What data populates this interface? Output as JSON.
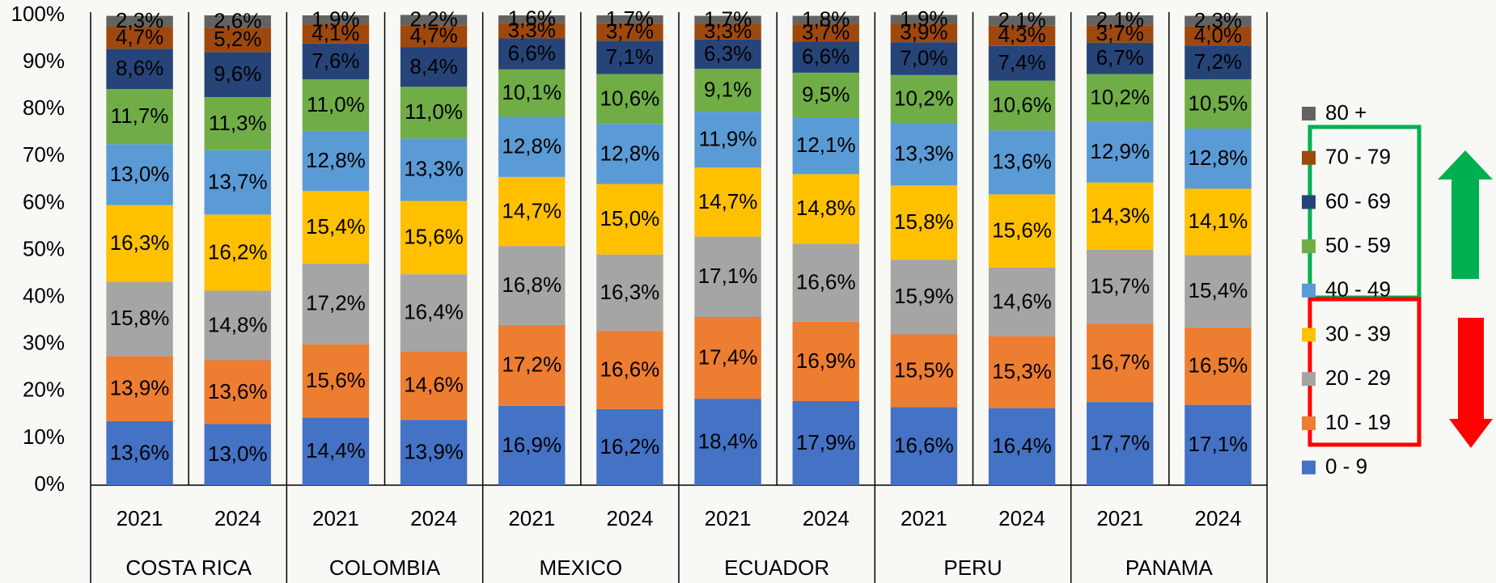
{
  "chart_data": {
    "type": "stacked_bar",
    "categories": [
      "2021",
      "2024",
      "2021",
      "2024",
      "2021",
      "2024",
      "2021",
      "2024",
      "2021",
      "2024",
      "2021",
      "2024"
    ],
    "groups": [
      "COSTA RICA",
      "COLOMBIA",
      "MEXICO",
      "ECUADOR",
      "PERU",
      "PANAMA"
    ],
    "ylim": [
      0,
      100
    ],
    "yticks": [
      {
        "value": 0,
        "label": "0%"
      },
      {
        "value": 10,
        "label": "10%"
      },
      {
        "value": 20,
        "label": "20%"
      },
      {
        "value": 30,
        "label": "30%"
      },
      {
        "value": 40,
        "label": "40%"
      },
      {
        "value": 50,
        "label": "50%"
      },
      {
        "value": 60,
        "label": "60%"
      },
      {
        "value": 70,
        "label": "70%"
      },
      {
        "value": 80,
        "label": "80%"
      },
      {
        "value": 90,
        "label": "90%"
      },
      {
        "value": 100,
        "label": "100%"
      }
    ],
    "legend": "right",
    "series": [
      {
        "name": "0 - 9",
        "color": "#4472c4",
        "values": [
          13.6,
          13.0,
          14.4,
          13.9,
          16.9,
          16.2,
          18.4,
          17.9,
          16.6,
          16.4,
          17.7,
          17.1
        ],
        "value_labels": [
          "13,6%",
          "13,0%",
          "14,4%",
          "13,9%",
          "16,9%",
          "16,2%",
          "18,4%",
          "17,9%",
          "16,6%",
          "16,4%",
          "17,7%",
          "17,1%"
        ]
      },
      {
        "name": "10 - 19",
        "color": "#ed7d31",
        "values": [
          13.9,
          13.6,
          15.6,
          14.6,
          17.2,
          16.6,
          17.4,
          16.9,
          15.5,
          15.3,
          16.7,
          16.5
        ],
        "value_labels": [
          "13,9%",
          "13,6%",
          "15,6%",
          "14,6%",
          "17,2%",
          "16,6%",
          "17,4%",
          "16,9%",
          "15,5%",
          "15,3%",
          "16,7%",
          "16,5%"
        ]
      },
      {
        "name": "20 - 29",
        "color": "#a5a5a5",
        "values": [
          15.8,
          14.8,
          17.2,
          16.4,
          16.8,
          16.3,
          17.1,
          16.6,
          15.9,
          14.6,
          15.7,
          15.4
        ],
        "value_labels": [
          "15,8%",
          "14,8%",
          "17,2%",
          "16,4%",
          "16,8%",
          "16,3%",
          "17,1%",
          "16,6%",
          "15,9%",
          "14,6%",
          "15,7%",
          "15,4%"
        ]
      },
      {
        "name": "30 - 39",
        "color": "#ffc000",
        "values": [
          16.3,
          16.2,
          15.4,
          15.6,
          14.7,
          15.0,
          14.7,
          14.8,
          15.8,
          15.6,
          14.3,
          14.1
        ],
        "value_labels": [
          "16,3%",
          "16,2%",
          "15,4%",
          "15,6%",
          "14,7%",
          "15,0%",
          "14,7%",
          "14,8%",
          "15,8%",
          "15,6%",
          "14,3%",
          "14,1%"
        ]
      },
      {
        "name": "40 - 49",
        "color": "#5b9bd5",
        "values": [
          13.0,
          13.7,
          12.8,
          13.3,
          12.8,
          12.8,
          11.9,
          12.1,
          13.3,
          13.6,
          12.9,
          12.8
        ],
        "value_labels": [
          "13,0%",
          "13,7%",
          "12,8%",
          "13,3%",
          "12,8%",
          "12,8%",
          "11,9%",
          "12,1%",
          "13,3%",
          "13,6%",
          "12,9%",
          "12,8%"
        ]
      },
      {
        "name": "50 - 59",
        "color": "#70ad47",
        "values": [
          11.7,
          11.3,
          11.0,
          11.0,
          10.1,
          10.6,
          9.1,
          9.5,
          10.2,
          10.6,
          10.2,
          10.5
        ],
        "value_labels": [
          "11,7%",
          "11,3%",
          "11,0%",
          "11,0%",
          "10,1%",
          "10,6%",
          "9,1%",
          "9,5%",
          "10,2%",
          "10,6%",
          "10,2%",
          "10,5%"
        ]
      },
      {
        "name": "60 - 69",
        "color": "#264478",
        "values": [
          8.6,
          9.6,
          7.6,
          8.4,
          6.6,
          7.1,
          6.3,
          6.6,
          7.0,
          7.4,
          6.7,
          7.2
        ],
        "value_labels": [
          "8,6%",
          "9,6%",
          "7,6%",
          "8,4%",
          "6,6%",
          "7,1%",
          "6,3%",
          "6,6%",
          "7,0%",
          "7,4%",
          "6,7%",
          "7,2%"
        ]
      },
      {
        "name": "70 - 79",
        "color": "#9e480e",
        "values": [
          4.7,
          5.2,
          4.1,
          4.7,
          3.3,
          3.7,
          3.3,
          3.7,
          3.9,
          4.3,
          3.7,
          4.0
        ],
        "value_labels": [
          "4,7%",
          "5,2%",
          "4,1%",
          "4,7%",
          "3,3%",
          "3,7%",
          "3,3%",
          "3,7%",
          "3,9%",
          "4,3%",
          "3,7%",
          "4,0%"
        ]
      },
      {
        "name": "80 +",
        "color": "#636363",
        "values": [
          2.3,
          2.6,
          1.9,
          2.2,
          1.6,
          1.7,
          1.7,
          1.8,
          1.9,
          2.1,
          2.1,
          2.3
        ],
        "value_labels": [
          "2,3%",
          "2,6%",
          "1,9%",
          "2,2%",
          "1,6%",
          "1,7%",
          "1,7%",
          "1,8%",
          "1,9%",
          "2,1%",
          "2,1%",
          "2,3%"
        ]
      }
    ]
  }
}
